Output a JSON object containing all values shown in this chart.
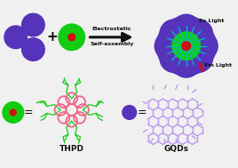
{
  "bg_color": "#f0f0f0",
  "purple_color": "#5533bb",
  "green_color": "#11cc11",
  "red_color": "#cc1111",
  "pink_color": "#ee6688",
  "light_purple_color": "#bb99ee",
  "cyan_color": "#00bbcc",
  "arrow_color": "#111111",
  "text_color": "#111111",
  "title_thpd": "THPD",
  "title_gqds": "GQDs",
  "label_electrostatic": "Electrostatic",
  "label_self_assembly": "Self-assembly",
  "label_ex": "Ex Light",
  "label_em": "Em Light",
  "figw": 2.68,
  "figh": 1.89,
  "dpi": 100
}
